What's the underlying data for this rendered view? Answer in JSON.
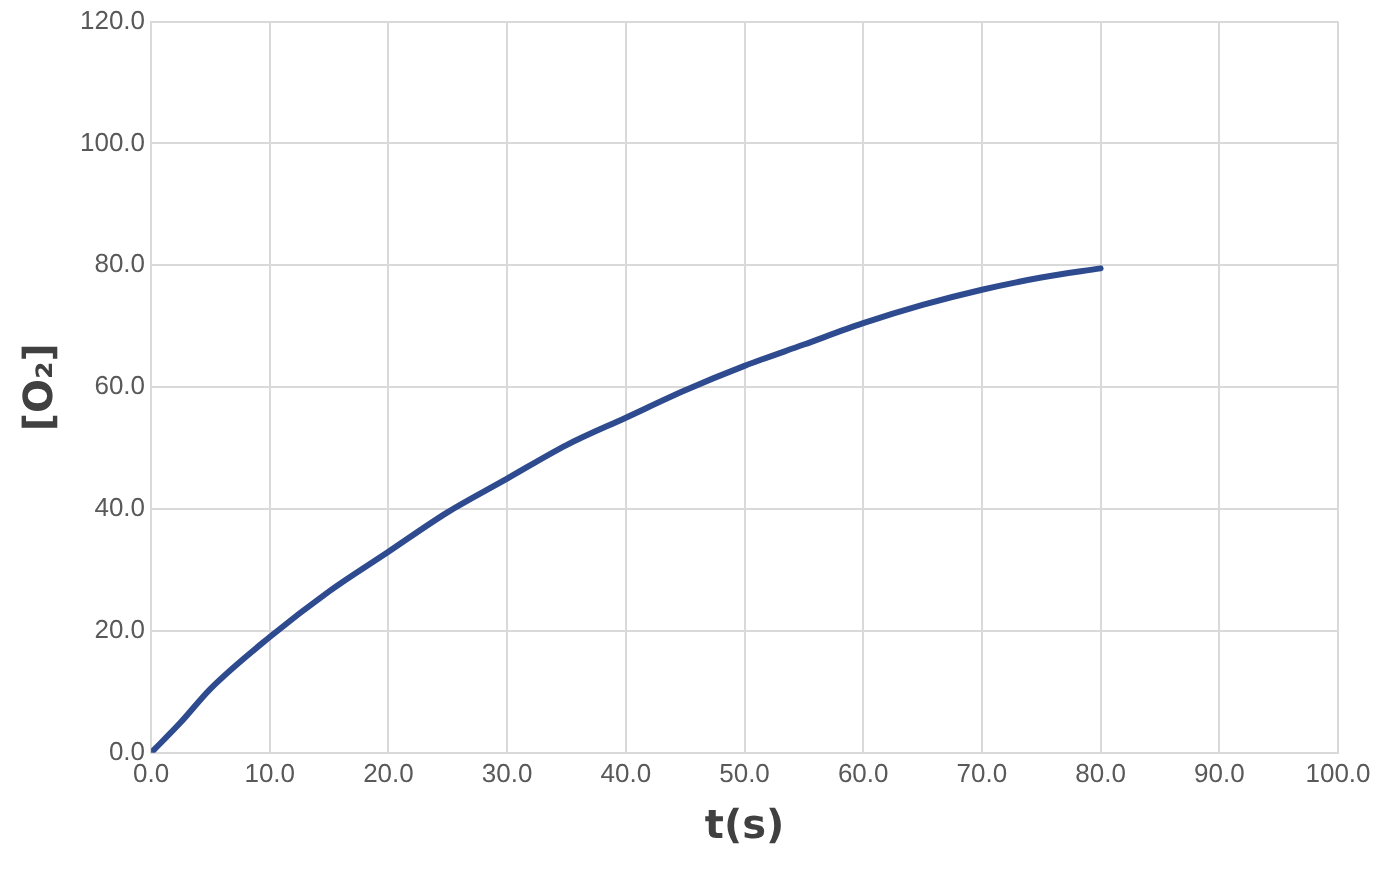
{
  "chart_data": {
    "type": "line",
    "xlabel": "t(s)",
    "ylabel": "[O₂]",
    "x": [
      0,
      2.5,
      5,
      10,
      15,
      20,
      25,
      30,
      35,
      40,
      45,
      50,
      55,
      60,
      65,
      70,
      75,
      80
    ],
    "series": [
      {
        "color": "#2f4b8f",
        "values": [
          0,
          5,
          10.5,
          19,
          26.5,
          33,
          39.5,
          45,
          50.5,
          55,
          59.5,
          63.5,
          67,
          70.5,
          73.5,
          76,
          78,
          79.5
        ]
      }
    ],
    "xlim": [
      0,
      100
    ],
    "ylim": [
      0,
      120
    ],
    "xticks": [
      {
        "value": 0,
        "label": "0.0"
      },
      {
        "value": 10,
        "label": "10.0"
      },
      {
        "value": 20,
        "label": "20.0"
      },
      {
        "value": 30,
        "label": "30.0"
      },
      {
        "value": 40,
        "label": "40.0"
      },
      {
        "value": 50,
        "label": "50.0"
      },
      {
        "value": 60,
        "label": "60.0"
      },
      {
        "value": 70,
        "label": "70.0"
      },
      {
        "value": 80,
        "label": "80.0"
      },
      {
        "value": 90,
        "label": "90.0"
      },
      {
        "value": 100,
        "label": "100.0"
      }
    ],
    "yticks": [
      {
        "value": 0,
        "label": "0.0"
      },
      {
        "value": 20,
        "label": "20.0"
      },
      {
        "value": 40,
        "label": "40.0"
      },
      {
        "value": 60,
        "label": "60.0"
      },
      {
        "value": 80,
        "label": "80.0"
      },
      {
        "value": 100,
        "label": "100.0"
      },
      {
        "value": 120,
        "label": "120.0"
      }
    ],
    "grid": true,
    "legend": false,
    "marker": "none",
    "line_style": "solid"
  }
}
